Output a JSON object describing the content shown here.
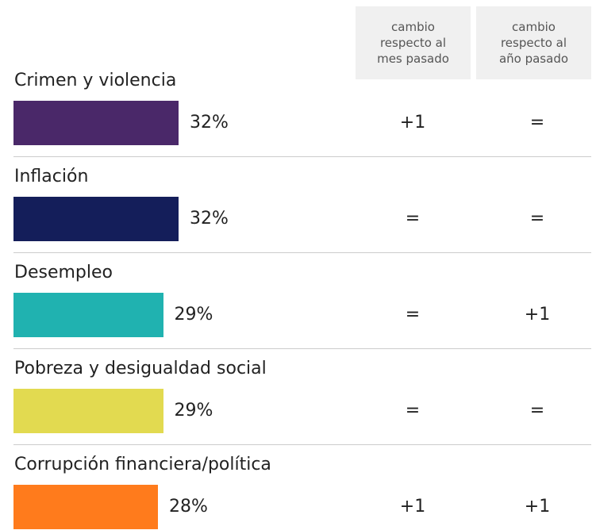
{
  "chart_data": {
    "type": "bar",
    "categories": [
      "Crimen y violencia",
      "Inflación",
      "Desempleo",
      "Pobreza y desigualdad social",
      "Corrupción financiera/política"
    ],
    "values": [
      32,
      32,
      29,
      29,
      28
    ],
    "value_labels": [
      "32%",
      "32%",
      "29%",
      "29%",
      "28%"
    ],
    "colors": [
      "#4a2869",
      "#141e5a",
      "#20b2b0",
      "#e2da50",
      "#ff7b1c"
    ],
    "columns": [
      {
        "name": "cambio respecto al mes pasado",
        "values": [
          "+1",
          "=",
          "=",
          "=",
          "+1"
        ]
      },
      {
        "name": "cambio respecto al año pasado",
        "values": [
          "=",
          "=",
          "+1",
          "=",
          "+1"
        ]
      }
    ]
  }
}
